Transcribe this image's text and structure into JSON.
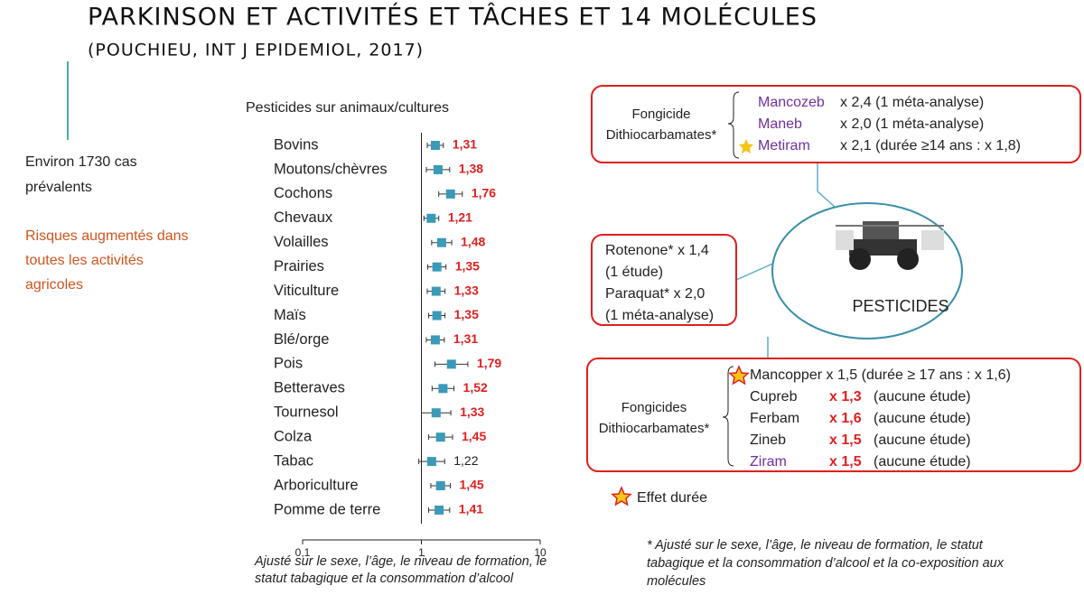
{
  "slide": {
    "title": "PARKINSON ET ACTIVITÉS ET TÂCHES ET 14 MOLÉCULES",
    "subtitle": "(POUCHIEU, INT J EPIDEMIOL, 2017)",
    "left_text": [
      "Environ 1730 cas",
      "prévalents"
    ],
    "left_highlight": [
      "Risques augmentés dans",
      "toutes les activités",
      "agricoles"
    ],
    "box1": {
      "label": [
        "Fongicide",
        "Dithiocarbamates*"
      ],
      "rows": [
        {
          "name": "Mancozeb",
          "text": "x 2,4 (1 méta-analyse)"
        },
        {
          "name": "Maneb",
          "text": "x 2,0 (1 méta-analyse)"
        },
        {
          "name": "Metiram",
          "text": "x 2,1 (durée ≥14 ans : x 1,8)"
        }
      ]
    },
    "center": "PESTICIDES",
    "box2": [
      "Rotenone* x 1,4",
      "(1 étude)",
      "Paraquat* x 2,0",
      "(1 méta-analyse)"
    ],
    "box3": {
      "label": [
        "Fongicides",
        "Dithiocarbamates*"
      ],
      "rows": [
        {
          "name": "Mancopper",
          "text": "x 1,5 (durée ≥ 17 ans : x 1,6)"
        },
        {
          "name": "Cupreb",
          "factor": "x 1,3",
          "text": "(aucune étude)"
        },
        {
          "name": "Ferbam",
          "factor": "x 1,6",
          "text": "(aucune étude)"
        },
        {
          "name": "Zineb",
          "factor": "x 1,5",
          "text": "(aucune étude)"
        },
        {
          "name": "Ziram",
          "factor": "x 1,5",
          "text": "(aucune étude)"
        }
      ]
    },
    "legend_star": "Effet durée",
    "footnote": [
      "* Ajusté sur le sexe, l’âge, le niveau de formation, le statut",
      "tabagique et la consommation d’alcool et la co-exposition aux",
      "molécules"
    ]
  },
  "chart_data": {
    "type": "forest",
    "title": "Pesticides sur animaux/cultures",
    "categories": [
      "Bovins",
      "Moutons/chèvres",
      "Cochons",
      "Chevaux",
      "Volailles",
      "Prairies",
      "Viticulture",
      "Maïs",
      "Blé/orge",
      "Pois",
      "Betteraves",
      "Tournesol",
      "Colza",
      "Tabac",
      "Arboriculture",
      "Pomme de terre"
    ],
    "values": [
      1.31,
      1.38,
      1.76,
      1.21,
      1.48,
      1.35,
      1.33,
      1.35,
      1.31,
      1.79,
      1.52,
      1.33,
      1.45,
      1.22,
      1.45,
      1.41
    ],
    "value_labels": [
      "1,31",
      "1,38",
      "1,76",
      "1,21",
      "1,48",
      "1,35",
      "1,33",
      "1,35",
      "1,31",
      "1,79",
      "1,52",
      "1,33",
      "1,45",
      "1,22",
      "1,45",
      "1,41"
    ],
    "value_label_colors": [
      "#e02020",
      "#e02020",
      "#e02020",
      "#e02020",
      "#e02020",
      "#e02020",
      "#e02020",
      "#e02020",
      "#e02020",
      "#e02020",
      "#e02020",
      "#e02020",
      "#e02020",
      "#222222",
      "#e02020",
      "#e02020"
    ],
    "lower": [
      1.12,
      1.1,
      1.4,
      1.05,
      1.22,
      1.13,
      1.12,
      1.15,
      1.1,
      1.3,
      1.23,
      1.0,
      1.15,
      0.95,
      1.2,
      1.15
    ],
    "upper": [
      1.53,
      1.73,
      2.21,
      1.4,
      1.8,
      1.61,
      1.58,
      1.58,
      1.56,
      2.46,
      1.88,
      1.77,
      1.83,
      1.57,
      1.75,
      1.73
    ],
    "color": "#3a9ab8",
    "xlim": [
      0.1,
      10
    ],
    "xticks": [
      {
        "value": 0.1,
        "label": "0,1"
      },
      1,
      10
    ],
    "log_x": true,
    "reference": 1,
    "note": [
      "Ajusté sur le sexe, l’âge, le niveau de formation, le",
      "statut tabagique et la consommation d’alcool"
    ]
  }
}
